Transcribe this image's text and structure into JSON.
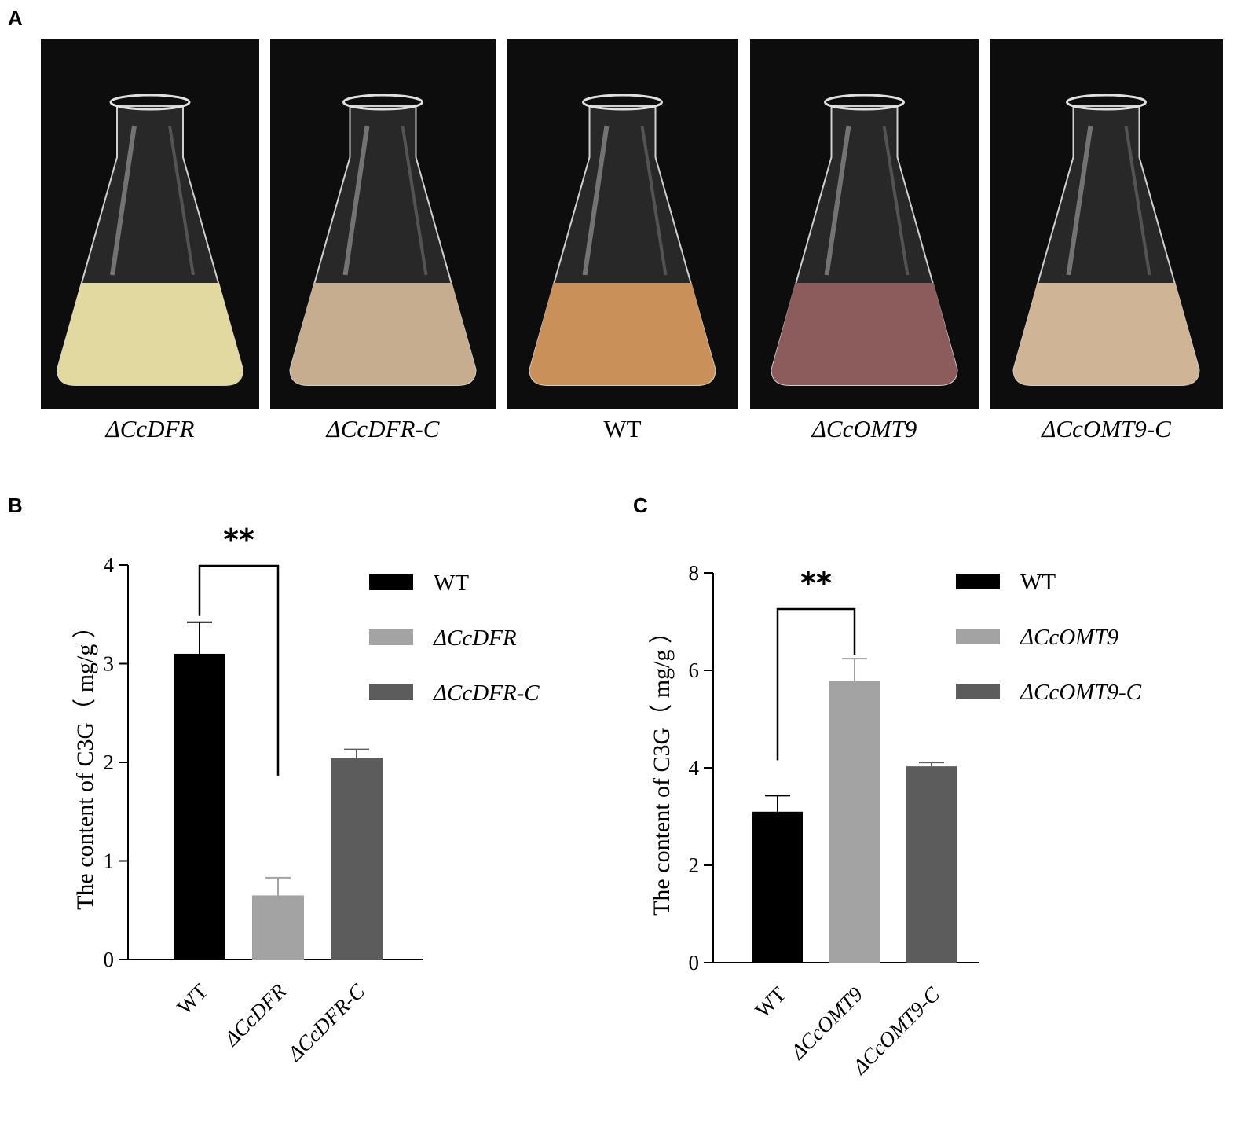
{
  "panel_a": {
    "letter": "A",
    "photos": [
      {
        "label": "ΔCcDFR",
        "italic": true,
        "liquid_color": "#e2d9a0"
      },
      {
        "label": "ΔCcDFR-C",
        "italic": true,
        "liquid_color": "#c7ad90"
      },
      {
        "label": "WT",
        "italic": false,
        "liquid_color": "#c9905a"
      },
      {
        "label": "ΔCcOMT9",
        "italic": true,
        "liquid_color": "#8c5c5c"
      },
      {
        "label": "ΔCcOMT9-C",
        "italic": true,
        "liquid_color": "#cfb596"
      }
    ]
  },
  "chart_data": [
    {
      "panel": "B",
      "type": "bar",
      "ylabel": "The content of C3G（ mg/g ）",
      "ylim": [
        0,
        4
      ],
      "yticks": [
        0,
        1,
        2,
        3,
        4
      ],
      "categories": [
        "WT",
        "ΔCcDFR",
        "ΔCcDFR-C"
      ],
      "values": [
        3.1,
        0.65,
        2.04
      ],
      "errors": [
        0.32,
        0.18,
        0.09
      ],
      "colors": [
        "#000000",
        "#a3a3a3",
        "#5c5c5c"
      ],
      "significance": {
        "label": "**",
        "from": 0,
        "to": 1
      },
      "legend": [
        "WT",
        "ΔCcDFR",
        "ΔCcDFR-C"
      ],
      "legend_position": "right"
    },
    {
      "panel": "C",
      "type": "bar",
      "ylabel": "The content of C3G（ mg/g ）",
      "ylim": [
        0,
        8
      ],
      "yticks": [
        0,
        2,
        4,
        6,
        8
      ],
      "categories": [
        "WT",
        "ΔCcOMT9",
        "ΔCcOMT9-C"
      ],
      "values": [
        3.1,
        5.78,
        4.03
      ],
      "errors": [
        0.33,
        0.46,
        0.08
      ],
      "colors": [
        "#000000",
        "#a3a3a3",
        "#5c5c5c"
      ],
      "significance": {
        "label": "**",
        "from": 0,
        "to": 1
      },
      "legend": [
        "WT",
        "ΔCcOMT9",
        "ΔCcOMT9-C"
      ],
      "legend_position": "right"
    }
  ]
}
